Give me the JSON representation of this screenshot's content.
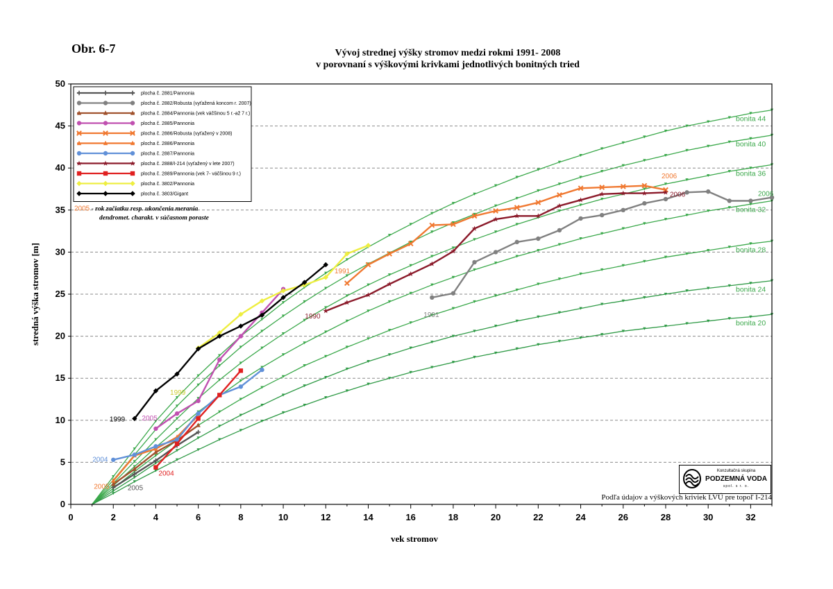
{
  "figure_label": "Obr. 6-7",
  "chart_data": {
    "type": "line",
    "title": [
      "Vývoj strednej výšky stromov medzi rokmi 1991- 2008",
      "v porovnaní s výškovými krivkami jednotlivých bonitných tried"
    ],
    "xlabel": "vek stromov",
    "ylabel": "stredná výška stromov [m]",
    "xlim": [
      0,
      33
    ],
    "ylim": [
      0,
      50
    ],
    "x_ticks": [
      0,
      2,
      4,
      6,
      8,
      10,
      12,
      14,
      16,
      18,
      20,
      22,
      24,
      26,
      28,
      30,
      32
    ],
    "y_ticks": [
      0,
      5,
      10,
      15,
      20,
      25,
      30,
      35,
      40,
      45,
      50
    ],
    "grid": "horizontal dashed",
    "legend_position": "top-left",
    "bonita_curves": [
      {
        "label": "bonita 44",
        "color": "#3aa84a",
        "x": [
          1,
          2,
          3,
          4,
          5,
          6,
          7,
          8,
          9,
          10,
          11,
          12,
          13,
          14,
          15,
          16,
          17,
          18,
          19,
          20,
          21,
          22,
          23,
          24,
          25,
          26,
          27,
          28,
          29,
          30,
          31,
          32,
          33
        ],
        "values": [
          0,
          3.3,
          6.6,
          9.9,
          12.7,
          15.3,
          17.7,
          20.0,
          22.0,
          24.0,
          25.8,
          27.5,
          29.1,
          30.6,
          32.0,
          33.3,
          34.6,
          35.8,
          36.9,
          37.9,
          38.9,
          39.8,
          40.7,
          41.5,
          42.3,
          43.0,
          43.7,
          44.4,
          45.0,
          45.5,
          46.0,
          46.5,
          46.9
        ]
      },
      {
        "label": "bonita 40",
        "color": "#3aa84a",
        "x": [
          1,
          2,
          3,
          4,
          5,
          6,
          7,
          8,
          9,
          10,
          11,
          12,
          13,
          14,
          15,
          16,
          17,
          18,
          19,
          20,
          21,
          22,
          23,
          24,
          25,
          26,
          27,
          28,
          29,
          30,
          31,
          32,
          33
        ],
        "values": [
          0,
          2.9,
          5.9,
          8.9,
          11.7,
          14.2,
          16.5,
          18.7,
          20.6,
          22.4,
          24.1,
          25.7,
          27.2,
          28.6,
          29.9,
          31.2,
          32.4,
          33.5,
          34.5,
          35.5,
          36.4,
          37.3,
          38.1,
          38.9,
          39.6,
          40.3,
          40.9,
          41.5,
          42.1,
          42.6,
          43.1,
          43.5,
          43.9
        ]
      },
      {
        "label": "bonita 36",
        "color": "#3aa84a",
        "x": [
          1,
          2,
          3,
          4,
          5,
          6,
          7,
          8,
          9,
          10,
          11,
          12,
          13,
          14,
          15,
          16,
          17,
          18,
          19,
          20,
          21,
          22,
          23,
          24,
          25,
          26,
          27,
          28,
          29,
          30,
          31,
          32,
          33
        ],
        "values": [
          0,
          2.5,
          5.1,
          7.7,
          10.2,
          12.6,
          14.8,
          16.8,
          18.6,
          20.3,
          21.9,
          23.4,
          24.8,
          26.1,
          27.3,
          28.4,
          29.5,
          30.5,
          31.5,
          32.4,
          33.3,
          34.1,
          34.9,
          35.6,
          36.3,
          36.9,
          37.5,
          38.1,
          38.6,
          39.1,
          39.6,
          40.0,
          40.4
        ]
      },
      {
        "label": "bonita 32",
        "color": "#3aa84a",
        "x": [
          1,
          2,
          3,
          4,
          5,
          6,
          7,
          8,
          9,
          10,
          11,
          12,
          13,
          14,
          15,
          16,
          17,
          18,
          19,
          20,
          21,
          22,
          23,
          24,
          25,
          26,
          27,
          28,
          29,
          30,
          31,
          32,
          33
        ],
        "values": [
          0,
          2.2,
          4.5,
          6.8,
          8.9,
          11.0,
          12.9,
          14.7,
          16.3,
          17.8,
          19.2,
          20.5,
          21.8,
          23.0,
          24.1,
          25.1,
          26.1,
          27.0,
          27.9,
          28.7,
          29.5,
          30.2,
          30.9,
          31.6,
          32.2,
          32.8,
          33.4,
          33.9,
          34.4,
          34.9,
          35.3,
          35.7,
          36.1
        ]
      },
      {
        "label": "bonita 28",
        "color": "#3aa84a",
        "x": [
          1,
          2,
          3,
          4,
          5,
          6,
          7,
          8,
          9,
          10,
          11,
          12,
          13,
          14,
          15,
          16,
          17,
          18,
          19,
          20,
          21,
          22,
          23,
          24,
          25,
          26,
          27,
          28,
          29,
          30,
          31,
          32,
          33
        ],
        "values": [
          0,
          1.9,
          3.9,
          5.8,
          7.6,
          9.4,
          11.0,
          12.5,
          13.9,
          15.2,
          16.5,
          17.6,
          18.7,
          19.7,
          20.7,
          21.6,
          22.5,
          23.3,
          24.1,
          24.8,
          25.5,
          26.2,
          26.8,
          27.4,
          27.9,
          28.4,
          28.9,
          29.4,
          29.8,
          30.2,
          30.6,
          31.0,
          31.3
        ]
      },
      {
        "label": "bonita 24",
        "color": "#2f9a46",
        "x": [
          1,
          2,
          3,
          4,
          5,
          6,
          7,
          8,
          9,
          10,
          11,
          12,
          13,
          14,
          15,
          16,
          17,
          18,
          19,
          20,
          21,
          22,
          23,
          24,
          25,
          26,
          27,
          28,
          29,
          30,
          31,
          32,
          33
        ],
        "values": [
          0,
          1.6,
          3.2,
          4.9,
          6.4,
          7.9,
          9.3,
          10.6,
          11.8,
          13.0,
          14.1,
          15.1,
          16.1,
          17.0,
          17.8,
          18.6,
          19.3,
          20.0,
          20.6,
          21.2,
          21.8,
          22.3,
          22.8,
          23.3,
          23.8,
          24.2,
          24.6,
          25.0,
          25.4,
          25.7,
          26.0,
          26.3,
          26.6
        ]
      },
      {
        "label": "bonita 20",
        "color": "#2f9a46",
        "x": [
          1,
          2,
          3,
          4,
          5,
          6,
          7,
          8,
          9,
          10,
          11,
          12,
          13,
          14,
          15,
          16,
          17,
          18,
          19,
          20,
          21,
          22,
          23,
          24,
          25,
          26,
          27,
          28,
          29,
          30,
          31,
          32,
          33
        ],
        "values": [
          0,
          1.3,
          2.7,
          4.0,
          5.3,
          6.5,
          7.7,
          8.8,
          9.9,
          10.9,
          11.8,
          12.7,
          13.5,
          14.3,
          15.0,
          15.7,
          16.3,
          16.9,
          17.5,
          18.0,
          18.5,
          19.0,
          19.4,
          19.8,
          20.2,
          20.6,
          20.9,
          21.2,
          21.5,
          21.8,
          22.1,
          22.3,
          22.6
        ]
      }
    ],
    "series": [
      {
        "name": "plocha č. 2881/Pannonia",
        "color": "#555555",
        "marker": "plus",
        "x": [
          2,
          3,
          4,
          5,
          6
        ],
        "values": [
          2.0,
          3.6,
          5.2,
          7.0,
          8.6
        ]
      },
      {
        "name": "plocha č. 2882/Robusta (vyťažená koncom r. 2007)",
        "color": "#808080",
        "marker": "circle",
        "x": [
          17,
          18,
          19,
          20,
          21,
          22,
          23,
          24,
          25,
          26,
          27,
          28,
          29,
          30,
          31,
          32,
          33
        ],
        "values": [
          24.6,
          25.1,
          28.8,
          30.0,
          31.2,
          31.6,
          32.6,
          34.0,
          34.4,
          35.0,
          35.8,
          36.3,
          37.1,
          37.2,
          36.1,
          36.1,
          36.5
        ]
      },
      {
        "name": "plocha č. 2884/Pannonia (vek väčšinou 5 r.-až 7 r.)",
        "color": "#a0522d",
        "marker": "triangle",
        "x": [
          2,
          3,
          4,
          5,
          6
        ],
        "values": [
          2.4,
          4.2,
          6.2,
          7.6,
          9.4
        ]
      },
      {
        "name": "plocha č. 2885/Pannonia",
        "color": "#c050b0",
        "marker": "circle",
        "x": [
          4,
          5,
          6,
          7,
          8,
          9,
          10
        ],
        "values": [
          9.0,
          10.8,
          12.3,
          17.2,
          20.0,
          22.8,
          25.6
        ]
      },
      {
        "name": "plocha č. 2886/Robusta (vyťažený v 2008)",
        "color": "#f07830",
        "marker": "x",
        "x": [
          13,
          14,
          15,
          16,
          17,
          18,
          19,
          20,
          21,
          22,
          23,
          24,
          25,
          26,
          27,
          28
        ],
        "values": [
          26.3,
          28.5,
          29.8,
          31.0,
          33.2,
          33.3,
          34.3,
          34.9,
          35.3,
          35.9,
          36.8,
          37.6,
          37.7,
          37.8,
          37.9,
          37.4
        ]
      },
      {
        "name": "plocha č. 2886/Pannonia",
        "color": "#f07830",
        "marker": "triangle",
        "x": [
          2,
          3,
          4,
          5,
          6
        ],
        "values": [
          2.8,
          5.8,
          6.6,
          8.0,
          10.6
        ]
      },
      {
        "name": "plocha č. 2887/Pannonia",
        "color": "#6090d8",
        "marker": "circle",
        "x": [
          2,
          3,
          4,
          5,
          6,
          7,
          8,
          9
        ],
        "values": [
          5.3,
          5.9,
          6.9,
          7.7,
          10.8,
          13.0,
          14.0,
          16.0
        ]
      },
      {
        "name": "plocha č. 2888/I-214 (vyťažený v lete 2007)",
        "color": "#8b1a2a",
        "marker": "star",
        "x": [
          12,
          13,
          14,
          15,
          16,
          17,
          18,
          19,
          20,
          21,
          22,
          23,
          24,
          25,
          26,
          27,
          28
        ],
        "values": [
          23.0,
          24.0,
          24.9,
          26.2,
          27.4,
          28.6,
          30.1,
          32.8,
          33.9,
          34.3,
          34.3,
          35.5,
          36.2,
          36.9,
          37.0,
          37.0,
          37.1
        ]
      },
      {
        "name": "plocha č. 2889/Pannonia (vek 7- väčšinou 9 r.)",
        "color": "#e02020",
        "marker": "square",
        "x": [
          4,
          5,
          6,
          7,
          8
        ],
        "values": [
          4.4,
          7.2,
          10.2,
          13.0,
          15.9
        ]
      },
      {
        "name": "plocha č. 3802/Pannonia",
        "color": "#eeee40",
        "marker": "diamond",
        "x": [
          6,
          7,
          8,
          9,
          10,
          11,
          12,
          13,
          14
        ],
        "values": [
          18.6,
          20.4,
          22.6,
          24.2,
          25.4,
          26.1,
          27.0,
          29.8,
          30.8
        ]
      },
      {
        "name": "plocha č. 3803/Gigant",
        "color": "#000000",
        "marker": "diamond",
        "x": [
          3,
          4,
          5,
          6,
          7,
          8,
          9,
          10,
          11,
          12
        ],
        "values": [
          10.2,
          13.5,
          15.5,
          18.5,
          20.0,
          21.2,
          22.5,
          24.6,
          26.4,
          28.5
        ]
      }
    ],
    "annotations": [
      {
        "text": "1999",
        "color": "#000000",
        "x": 3,
        "y": 10.2
      },
      {
        "text": "2005",
        "color": "#c050b0",
        "x": 4,
        "y": 9.8
      },
      {
        "text": "1999",
        "color": "#cccc30",
        "x": 5,
        "y": 14.2
      },
      {
        "text": "2004",
        "color": "#e02020",
        "x": 4,
        "y": 4.4
      },
      {
        "text": "2005",
        "color": "#555555",
        "x": 3,
        "y": 3.0
      },
      {
        "text": "2004",
        "color": "#6090d8",
        "x": 2,
        "y": 5.4
      },
      {
        "text": "2005",
        "color": "#f07830",
        "x": 2,
        "y": 2.2
      },
      {
        "text": "1991",
        "color": "#f07830",
        "x": 13,
        "y": 27.0
      },
      {
        "text": "1991",
        "color": "#808080",
        "x": 17,
        "y": 23.6
      },
      {
        "text": "1990",
        "color": "#8b1a2a",
        "x": 12,
        "y": 22.6
      },
      {
        "text": "2006",
        "color": "#f07830",
        "x": 28,
        "y": 38.3
      },
      {
        "text": "2006",
        "color": "#8b1a2a",
        "x": 28,
        "y": 37.1
      },
      {
        "text": "2006",
        "color": "#3aa84a",
        "x": 33,
        "y": 37.0
      }
    ]
  },
  "legend_note": {
    "prefix": "2005",
    "line1": " - rok začiatku resp. ukončenia merania",
    "line2": "dendromet. charakt. v súčasnom poraste"
  },
  "logo": {
    "small": "Konzultačná skupina",
    "big": "PODZEMNÁ VODA",
    "sub": "spol. s r. o."
  },
  "source_note": "Podľa údajov a výškových kriviek LVÚ pre topoľ I-214"
}
